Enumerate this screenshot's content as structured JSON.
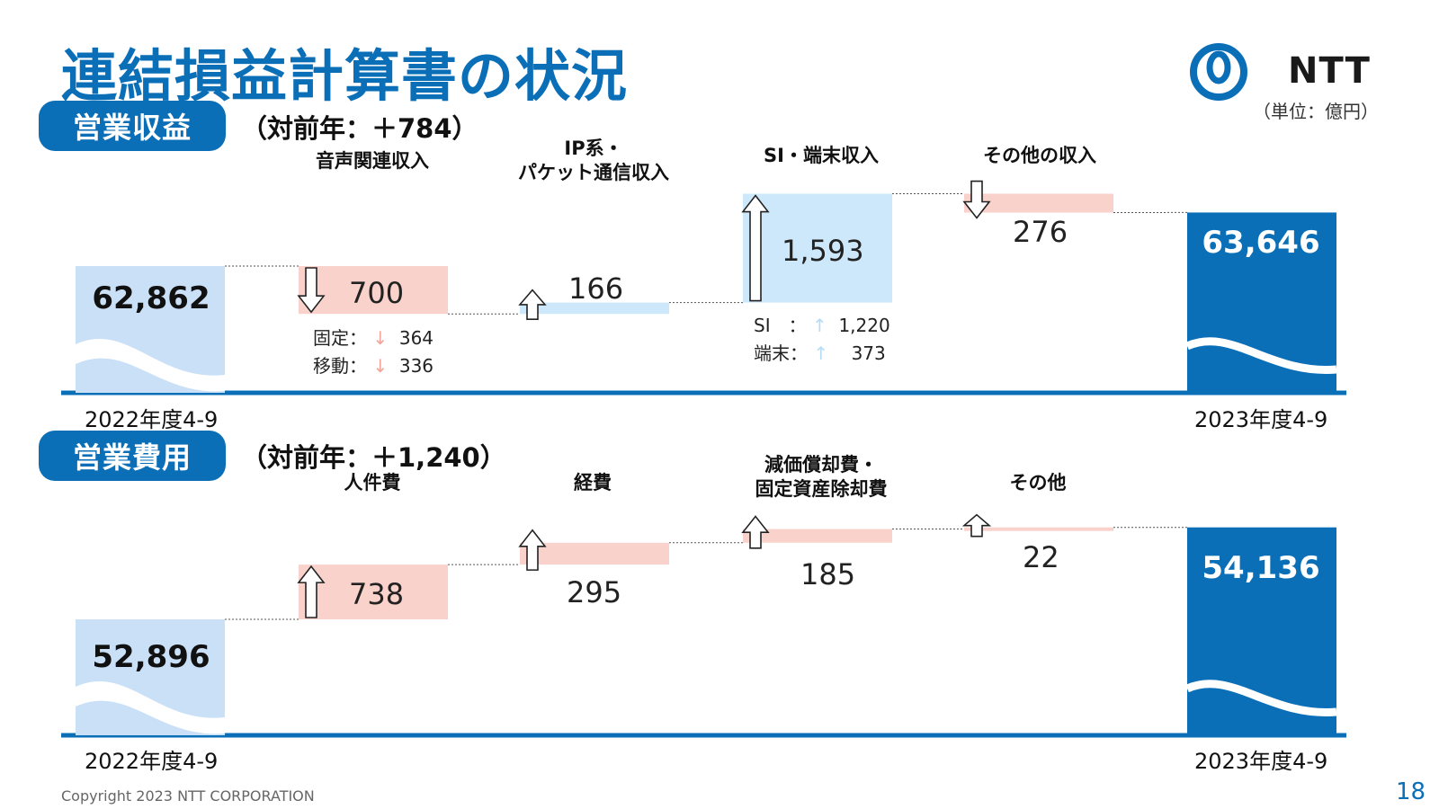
{
  "page": {
    "title": "連結損益計算書の状況",
    "brand": "NTT",
    "unit": "（単位：億円）",
    "copyright": "Copyright  2023 NTT CORPORATION",
    "page_number": "18"
  },
  "colors": {
    "brand_blue": "#0B6FB8",
    "start_bar": "#C9E0F7",
    "increase_bar": "#CDE8FA",
    "cost_bar": "#FAD2CC",
    "dark_bar": "#0B6FB8"
  },
  "revenue": {
    "label": "営業収益",
    "yoy": "（対前年：＋784）",
    "start_year": "2022年度4-9",
    "end_year": "2023年度4-9",
    "items": [
      {
        "category": "音声関連収入",
        "category_lines": [
          "音声関連収入"
        ],
        "value_label": "700",
        "arrow": "down-icon"
      },
      {
        "category": "IP系・パケット通信収入",
        "category_lines": [
          "IP系・",
          "パケット通信収入"
        ],
        "value_label": "166",
        "arrow": "up-icon"
      },
      {
        "category": "SI・端末収入",
        "category_lines": [
          "SI・端末収入"
        ],
        "value_label": "1,593",
        "arrow": "up-icon"
      },
      {
        "category": "その他の収入",
        "category_lines": [
          "その他の収入"
        ],
        "value_label": "276",
        "arrow": "down-icon"
      }
    ],
    "breakdowns": [
      {
        "rows": [
          {
            "label": "固定：",
            "arrow": "↓",
            "value": "364"
          },
          {
            "label": "移動：",
            "arrow": "↓",
            "value": "336"
          }
        ]
      },
      {
        "rows": [
          {
            "label": "SI　：",
            "arrow": "↑",
            "value": "1,220"
          },
          {
            "label": "端末：",
            "arrow": "↑",
            "value": "373"
          }
        ]
      }
    ],
    "start_label": "62,862",
    "end_label": "63,646"
  },
  "expense": {
    "label": "営業費用",
    "yoy": "（対前年：＋1,240）",
    "start_year": "2022年度4-9",
    "end_year": "2023年度4-9",
    "items": [
      {
        "category": "人件費",
        "category_lines": [
          "人件費"
        ],
        "value_label": "738",
        "arrow": "up-icon"
      },
      {
        "category": "経費",
        "category_lines": [
          "経費"
        ],
        "value_label": "295",
        "arrow": "up-icon"
      },
      {
        "category": "減価償却費・固定資産除却費",
        "category_lines": [
          "減価償却費・",
          "固定資産除却費"
        ],
        "value_label": "185",
        "arrow": "up-icon"
      },
      {
        "category": "その他",
        "category_lines": [
          "その他"
        ],
        "value_label": "22",
        "arrow": "up-icon"
      }
    ],
    "start_label": "52,896",
    "end_label": "54,136"
  },
  "chart_data": [
    {
      "type": "bar",
      "subtype": "waterfall",
      "name": "営業収益",
      "categories": [
        "2022年度4-9",
        "音声関連収入",
        "IP系・パケット通信収入",
        "SI・端末収入",
        "その他の収入",
        "2023年度4-9"
      ],
      "values": [
        62862,
        -700,
        166,
        1593,
        -276,
        63646
      ],
      "breakdown": {
        "音声関連収入": {
          "固定": -364,
          "移動": -336
        },
        "SI・端末収入": {
          "SI": 1220,
          "端末": 373
        }
      }
    },
    {
      "type": "bar",
      "subtype": "waterfall",
      "name": "営業費用",
      "categories": [
        "2022年度4-9",
        "人件費",
        "経費",
        "減価償却費・固定資産除却費",
        "その他",
        "2023年度4-9"
      ],
      "values": [
        52896,
        738,
        295,
        185,
        22,
        54136
      ]
    }
  ]
}
